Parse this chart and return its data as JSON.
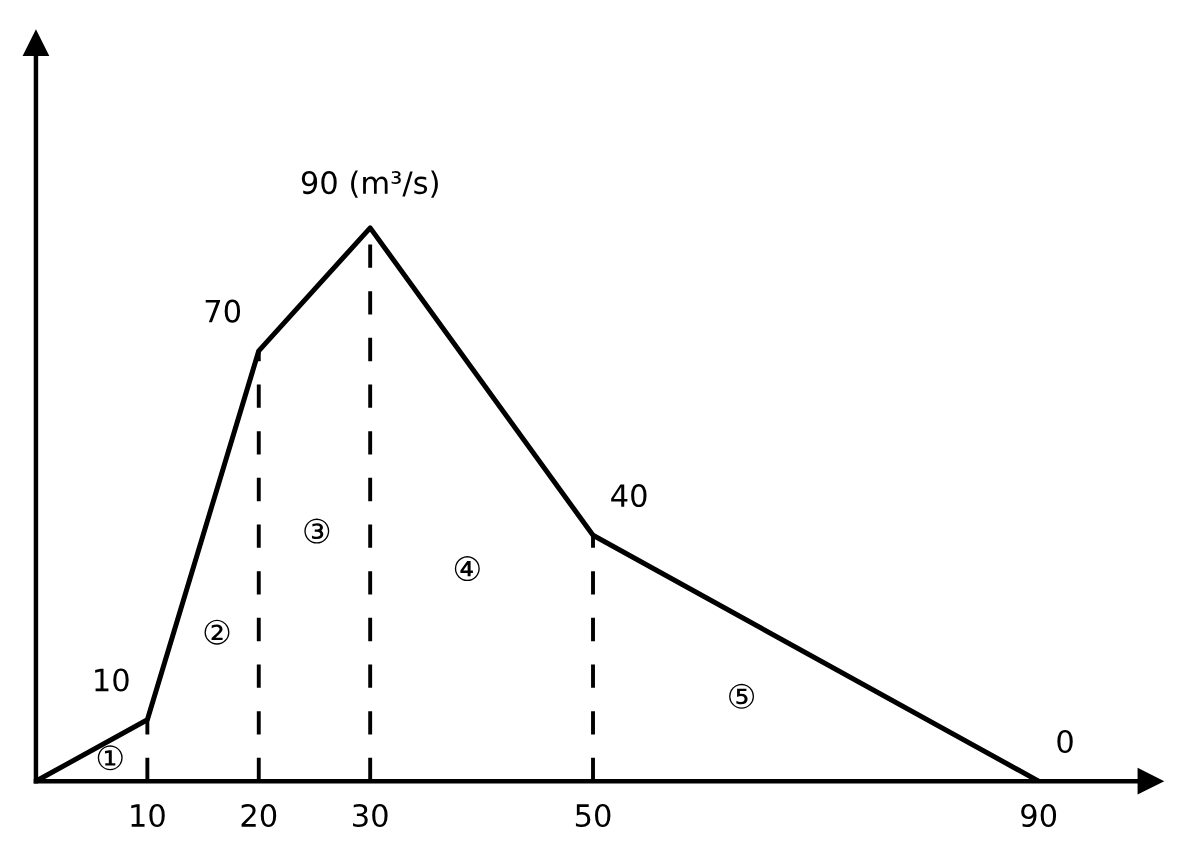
{
  "chart_data": {
    "type": "line",
    "x": [
      0,
      10,
      20,
      30,
      50,
      90
    ],
    "values": [
      0,
      10,
      70,
      90,
      40,
      0
    ],
    "value_labels": [
      null,
      "10",
      "70",
      "90 (m³/s)",
      "40",
      "0"
    ],
    "color": "#000000",
    "xlim": [
      0,
      100
    ],
    "xticks": [
      10,
      20,
      30,
      50,
      90
    ],
    "ylim": [
      0,
      120
    ],
    "tick_labels": "x",
    "grid": false,
    "marker": "none",
    "line_style": "solid",
    "ref_lines": [
      {
        "axis": "x",
        "value": 10,
        "line_style": "dashed",
        "color": "#000000"
      },
      {
        "axis": "x",
        "value": 20,
        "line_style": "dashed",
        "color": "#000000"
      },
      {
        "axis": "x",
        "value": 30,
        "line_style": "dashed",
        "color": "#000000"
      },
      {
        "axis": "x",
        "value": 50,
        "line_style": "dashed",
        "color": "#000000"
      }
    ],
    "annotations": [
      "①",
      "②",
      "③",
      "④",
      "⑤"
    ]
  }
}
